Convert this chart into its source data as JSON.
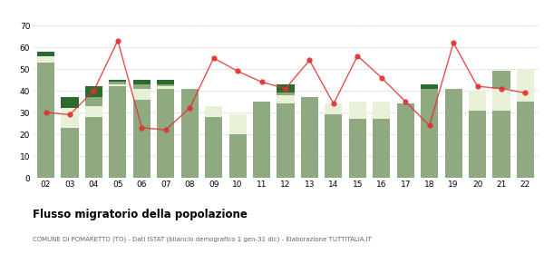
{
  "years": [
    "02",
    "03",
    "04",
    "05",
    "06",
    "07",
    "08",
    "09",
    "10",
    "11",
    "12",
    "13",
    "14",
    "15",
    "16",
    "17",
    "18",
    "19",
    "20",
    "21",
    "22"
  ],
  "iscritti_comuni": [
    53,
    23,
    28,
    42,
    36,
    41,
    41,
    28,
    20,
    35,
    34,
    37,
    29,
    27,
    27,
    34,
    41,
    41,
    31,
    31,
    35
  ],
  "iscritti_estero": [
    3,
    9,
    5,
    1,
    5,
    1,
    0,
    5,
    9,
    0,
    4,
    0,
    5,
    8,
    8,
    0,
    0,
    0,
    9,
    10,
    15
  ],
  "iscritti_altri_light": [
    0,
    0,
    4,
    1,
    2,
    1,
    0,
    0,
    0,
    0,
    1,
    0,
    0,
    0,
    0,
    0,
    0,
    0,
    0,
    8,
    0
  ],
  "iscritti_altri_dark": [
    2,
    5,
    5,
    1,
    2,
    2,
    0,
    0,
    0,
    0,
    4,
    0,
    0,
    0,
    0,
    0,
    2,
    0,
    0,
    0,
    0
  ],
  "cancellati": [
    30,
    29,
    40,
    63,
    23,
    22,
    32,
    55,
    49,
    44,
    41,
    54,
    34,
    56,
    46,
    35,
    24,
    62,
    42,
    41,
    39
  ],
  "color_comuni": "#8faa80",
  "color_estero": "#e8f0d8",
  "color_altri_light": "#8faa80",
  "color_altri_dark": "#2d6a2d",
  "color_cancellati": "#e03030",
  "ylim_max": 70,
  "yticks": [
    0,
    10,
    20,
    30,
    40,
    50,
    60,
    70
  ],
  "title": "Flusso migratorio della popolazione",
  "subtitle": "COMUNE DI POMARETTO (TO) - Dati ISTAT (bilancio demografico 1 gen-31 dic) - Elaborazione TUTTITALIA.IT"
}
